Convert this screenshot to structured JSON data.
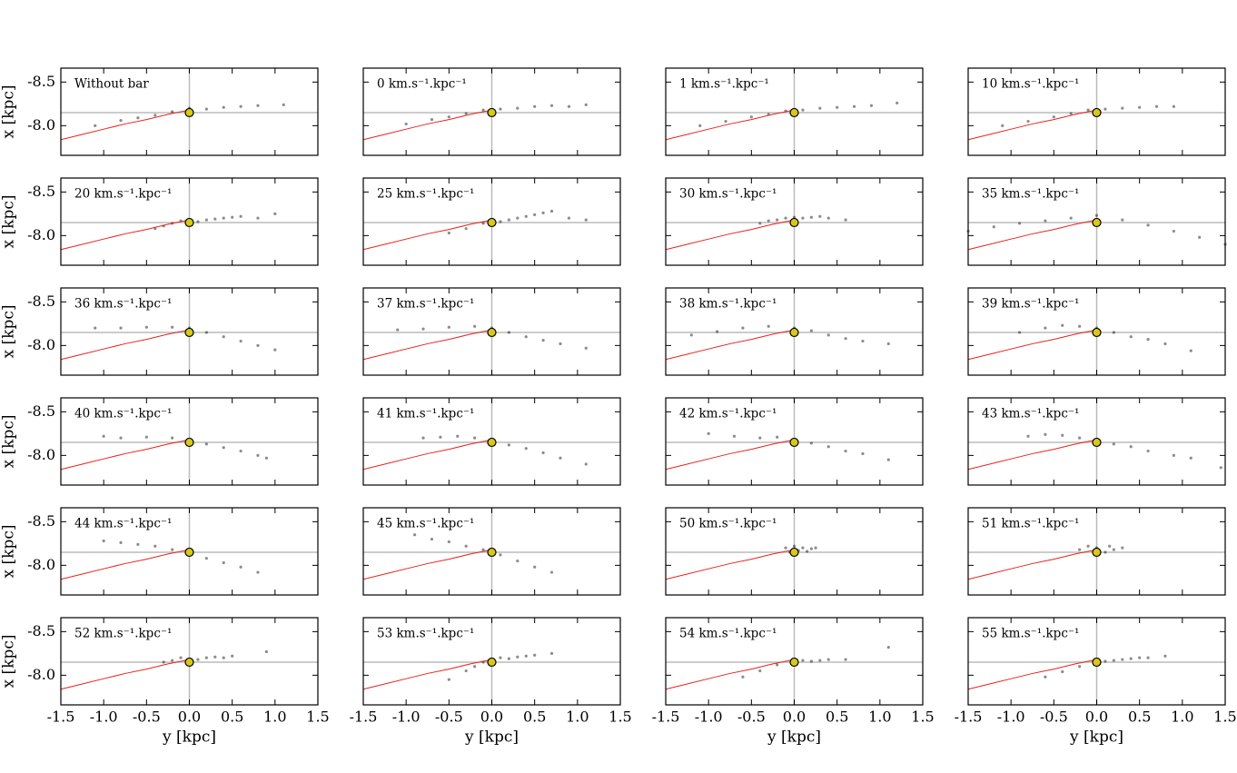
{
  "chart_data": {
    "type": "scatter",
    "xlabel": "y [kpc]",
    "ylabel": "x [kpc]",
    "xlim": [
      -1.5,
      1.5
    ],
    "ylim": [
      -8.66,
      -7.66
    ],
    "y_inverted": true,
    "xticks": [
      -1.5,
      {
        "value": -1,
        "label": "-1.0"
      },
      -0.5,
      {
        "value": 0,
        "label": "0.0"
      },
      0.5,
      {
        "value": 1,
        "label": "1.0"
      },
      1.5
    ],
    "yticks": [
      -8.5,
      {
        "value": -8,
        "label": "-8.0"
      }
    ],
    "point_color": "#000000",
    "curve_color": "#e8221c",
    "line_color": "#bbbbbb",
    "sun_color": "#d8c81a",
    "hline": -8.15,
    "vline": 0,
    "sun": {
      "x": 0,
      "y": -8.15
    },
    "curve": {
      "x": [
        -1.5,
        -1.25,
        -1,
        -0.75,
        -0.5,
        -0.25,
        0
      ],
      "y": [
        -7.84,
        -7.9,
        -7.96,
        -8.02,
        -8.07,
        -8.13,
        -8.18
      ]
    },
    "panels": [
      {
        "label": "Without bar",
        "x": [
          -1.1,
          -0.8,
          -0.6,
          -0.4,
          -0.2,
          0,
          0.2,
          0.4,
          0.6,
          0.8,
          1.1
        ],
        "y": [
          -8.0,
          -8.06,
          -8.09,
          -8.12,
          -8.16,
          -8.2,
          -8.19,
          -8.21,
          -8.22,
          -8.23,
          -8.24
        ]
      },
      {
        "label": "0 km.s⁻¹.kpc⁻¹",
        "x": [
          -1.0,
          -0.7,
          -0.5,
          -0.3,
          -0.1,
          0.1,
          0.3,
          0.5,
          0.7,
          0.9,
          1.1
        ],
        "y": [
          -8.02,
          -8.07,
          -8.1,
          -8.14,
          -8.18,
          -8.19,
          -8.2,
          -8.22,
          -8.23,
          -8.22,
          -8.24
        ]
      },
      {
        "label": "1 km.s⁻¹.kpc⁻¹",
        "x": [
          -1.1,
          -0.8,
          -0.5,
          -0.3,
          -0.1,
          0.1,
          0.3,
          0.5,
          0.7,
          0.9,
          1.2
        ],
        "y": [
          -8.0,
          -8.05,
          -8.1,
          -8.13,
          -8.17,
          -8.18,
          -8.2,
          -8.21,
          -8.22,
          -8.23,
          -8.26
        ]
      },
      {
        "label": "10 km.s⁻¹.kpc⁻¹",
        "x": [
          -1.1,
          -0.8,
          -0.5,
          -0.3,
          -0.1,
          0.1,
          0.3,
          0.5,
          0.7,
          0.9
        ],
        "y": [
          -8.0,
          -8.05,
          -8.1,
          -8.14,
          -8.18,
          -8.19,
          -8.2,
          -8.21,
          -8.22,
          -8.22
        ]
      },
      {
        "label": "20 km.s⁻¹.kpc⁻¹",
        "x": [
          -0.4,
          -0.3,
          -0.2,
          -0.1,
          0.1,
          0.2,
          0.3,
          0.4,
          0.5,
          0.6,
          0.8,
          1.0
        ],
        "y": [
          -8.08,
          -8.11,
          -8.14,
          -8.17,
          -8.16,
          -8.18,
          -8.19,
          -8.2,
          -8.21,
          -8.22,
          -8.2,
          -8.25
        ]
      },
      {
        "label": "25 km.s⁻¹.kpc⁻¹",
        "x": [
          -0.5,
          -0.3,
          -0.1,
          0.1,
          0.2,
          0.3,
          0.4,
          0.5,
          0.6,
          0.7,
          0.9,
          1.1
        ],
        "y": [
          -8.03,
          -8.08,
          -8.14,
          -8.16,
          -8.18,
          -8.2,
          -8.22,
          -8.24,
          -8.26,
          -8.28,
          -8.2,
          -8.18
        ]
      },
      {
        "label": "30 km.s⁻¹.kpc⁻¹",
        "x": [
          -0.4,
          -0.3,
          -0.2,
          -0.1,
          0,
          0.1,
          0.2,
          0.3,
          0.4,
          0.6
        ],
        "y": [
          -8.14,
          -8.17,
          -8.18,
          -8.2,
          -8.21,
          -8.2,
          -8.21,
          -8.22,
          -8.2,
          -8.18
        ]
      },
      {
        "label": "35 km.s⁻¹.kpc⁻¹",
        "x": [
          -1.5,
          -1.2,
          -0.9,
          -0.6,
          -0.3,
          0,
          0.3,
          0.6,
          0.9,
          1.2,
          1.5
        ],
        "y": [
          -8.05,
          -8.1,
          -8.14,
          -8.17,
          -8.2,
          -8.23,
          -8.18,
          -8.12,
          -8.05,
          -7.98,
          -7.9
        ]
      },
      {
        "label": "36 km.s⁻¹.kpc⁻¹",
        "x": [
          -1.1,
          -0.8,
          -0.5,
          -0.2,
          0,
          0.2,
          0.4,
          0.6,
          0.8,
          1.0
        ],
        "y": [
          -8.2,
          -8.2,
          -8.21,
          -8.21,
          -8.2,
          -8.15,
          -8.1,
          -8.05,
          -8.0,
          -7.95
        ]
      },
      {
        "label": "37 km.s⁻¹.kpc⁻¹",
        "x": [
          -1.1,
          -0.8,
          -0.5,
          -0.2,
          0,
          0.2,
          0.4,
          0.6,
          0.8,
          1.1
        ],
        "y": [
          -8.18,
          -8.19,
          -8.21,
          -8.22,
          -8.2,
          -8.15,
          -8.1,
          -8.06,
          -8.02,
          -7.97
        ]
      },
      {
        "label": "38 km.s⁻¹.kpc⁻¹",
        "x": [
          -1.2,
          -0.9,
          -0.6,
          -0.3,
          0,
          0.2,
          0.4,
          0.6,
          0.8,
          1.1
        ],
        "y": [
          -8.12,
          -8.16,
          -8.2,
          -8.22,
          -8.2,
          -8.17,
          -8.12,
          -8.08,
          -8.05,
          -8.02
        ]
      },
      {
        "label": "39 km.s⁻¹.kpc⁻¹",
        "x": [
          -0.9,
          -0.6,
          -0.4,
          -0.2,
          0,
          0.2,
          0.4,
          0.6,
          0.8,
          1.1
        ],
        "y": [
          -8.15,
          -8.2,
          -8.23,
          -8.22,
          -8.2,
          -8.15,
          -8.1,
          -8.07,
          -8.02,
          -7.94
        ]
      },
      {
        "label": "40 km.s⁻¹.kpc⁻¹",
        "x": [
          -1.0,
          -0.8,
          -0.5,
          -0.2,
          0,
          0.2,
          0.4,
          0.6,
          0.8,
          0.9
        ],
        "y": [
          -8.22,
          -8.2,
          -8.21,
          -8.2,
          -8.18,
          -8.13,
          -8.09,
          -8.05,
          -8.0,
          -7.97
        ]
      },
      {
        "label": "41 km.s⁻¹.kpc⁻¹",
        "x": [
          -0.8,
          -0.6,
          -0.4,
          -0.2,
          0,
          0.2,
          0.4,
          0.6,
          0.8,
          1.1
        ],
        "y": [
          -8.2,
          -8.21,
          -8.22,
          -8.2,
          -8.18,
          -8.12,
          -8.08,
          -8.03,
          -7.97,
          -7.9
        ]
      },
      {
        "label": "42 km.s⁻¹.kpc⁻¹",
        "x": [
          -1.0,
          -0.7,
          -0.4,
          -0.2,
          0,
          0.2,
          0.4,
          0.6,
          0.8,
          1.1
        ],
        "y": [
          -8.25,
          -8.22,
          -8.2,
          -8.21,
          -8.18,
          -8.14,
          -8.1,
          -8.05,
          -8.02,
          -7.95
        ]
      },
      {
        "label": "43 km.s⁻¹.kpc⁻¹",
        "x": [
          -0.8,
          -0.6,
          -0.4,
          -0.2,
          0,
          0.2,
          0.4,
          0.6,
          0.9,
          1.1,
          1.45
        ],
        "y": [
          -8.22,
          -8.24,
          -8.23,
          -8.2,
          -8.18,
          -8.13,
          -8.1,
          -8.05,
          -8.0,
          -7.97,
          -7.86
        ]
      },
      {
        "label": "44 km.s⁻¹.kpc⁻¹",
        "x": [
          -1.0,
          -0.8,
          -0.6,
          -0.4,
          -0.2,
          0,
          0.2,
          0.4,
          0.6,
          0.8
        ],
        "y": [
          -8.28,
          -8.26,
          -8.24,
          -8.22,
          -8.18,
          -8.14,
          -8.08,
          -8.03,
          -7.98,
          -7.92
        ]
      },
      {
        "label": "45 km.s⁻¹.kpc⁻¹",
        "x": [
          -0.9,
          -0.7,
          -0.5,
          -0.3,
          -0.1,
          0.1,
          0.3,
          0.5,
          0.7
        ],
        "y": [
          -8.35,
          -8.3,
          -8.27,
          -8.22,
          -8.18,
          -8.12,
          -8.05,
          -7.98,
          -7.92
        ]
      },
      {
        "label": "50 km.s⁻¹.kpc⁻¹",
        "x": [
          -0.1,
          -0.05,
          0,
          0.05,
          0.1,
          0.15,
          0.2,
          0.25
        ],
        "y": [
          -8.2,
          -8.15,
          -8.22,
          -8.17,
          -8.2,
          -8.16,
          -8.19,
          -8.2
        ]
      },
      {
        "label": "51 km.s⁻¹.kpc⁻¹",
        "x": [
          -0.2,
          -0.1,
          0,
          0.1,
          0.15,
          0.2,
          0.3
        ],
        "y": [
          -8.18,
          -8.22,
          -8.2,
          -8.15,
          -8.22,
          -8.18,
          -8.2
        ]
      },
      {
        "label": "52 km.s⁻¹.kpc⁻¹",
        "x": [
          -0.3,
          -0.2,
          -0.1,
          0,
          0.1,
          0.2,
          0.3,
          0.4,
          0.5,
          0.9
        ],
        "y": [
          -8.15,
          -8.17,
          -8.2,
          -8.16,
          -8.18,
          -8.2,
          -8.21,
          -8.2,
          -8.22,
          -8.27
        ]
      },
      {
        "label": "53 km.s⁻¹.kpc⁻¹",
        "x": [
          -0.5,
          -0.3,
          -0.2,
          -0.1,
          0,
          0.1,
          0.2,
          0.3,
          0.4,
          0.5,
          0.7
        ],
        "y": [
          -7.95,
          -8.05,
          -8.1,
          -8.15,
          -8.18,
          -8.2,
          -8.19,
          -8.21,
          -8.22,
          -8.23,
          -8.25
        ]
      },
      {
        "label": "54 km.s⁻¹.kpc⁻¹",
        "x": [
          -0.6,
          -0.4,
          -0.2,
          0,
          0.1,
          0.2,
          0.3,
          0.4,
          0.6,
          1.1
        ],
        "y": [
          -7.98,
          -8.05,
          -8.12,
          -8.16,
          -8.17,
          -8.16,
          -8.17,
          -8.18,
          -8.18,
          -8.32
        ]
      },
      {
        "label": "55 km.s⁻¹.kpc⁻¹",
        "x": [
          -0.6,
          -0.4,
          -0.2,
          0,
          0.1,
          0.2,
          0.3,
          0.4,
          0.5,
          0.6,
          0.8
        ],
        "y": [
          -7.98,
          -8.04,
          -8.1,
          -8.15,
          -8.16,
          -8.17,
          -8.18,
          -8.19,
          -8.2,
          -8.2,
          -8.22
        ]
      }
    ]
  }
}
